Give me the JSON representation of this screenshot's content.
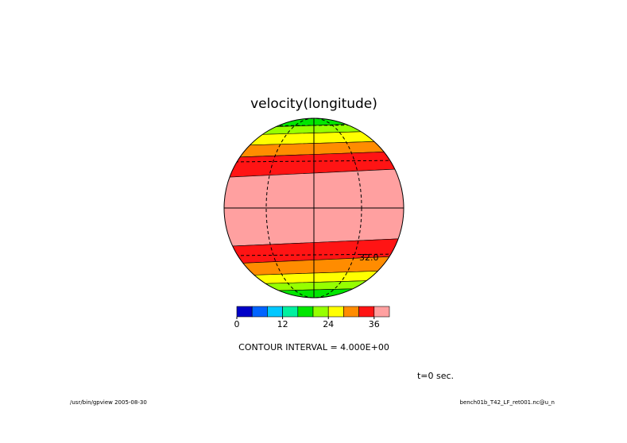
{
  "chart_data": {
    "type": "filled-contour-globe",
    "title": "velocity(longitude)",
    "levels": [
      0,
      4,
      8,
      12,
      16,
      20,
      24,
      28,
      32,
      36,
      40
    ],
    "colors": [
      "#0000c8",
      "#0064ff",
      "#00c8ff",
      "#00f0a0",
      "#00e600",
      "#96ff00",
      "#ffff00",
      "#ff8c00",
      "#ff1414",
      "#ffa0a0"
    ],
    "colorbar_ticks": [
      0,
      12,
      24,
      36
    ],
    "contour_label": "32.0",
    "contour_interval": "CONTOUR INTERVAL = 4.000E+00",
    "time_label": "t=0 sec.",
    "footer_left": "/usr/bin/gpview  2005-08-30",
    "footer_right": "bench01b_T42_LF_ret001.nc@u_n"
  }
}
